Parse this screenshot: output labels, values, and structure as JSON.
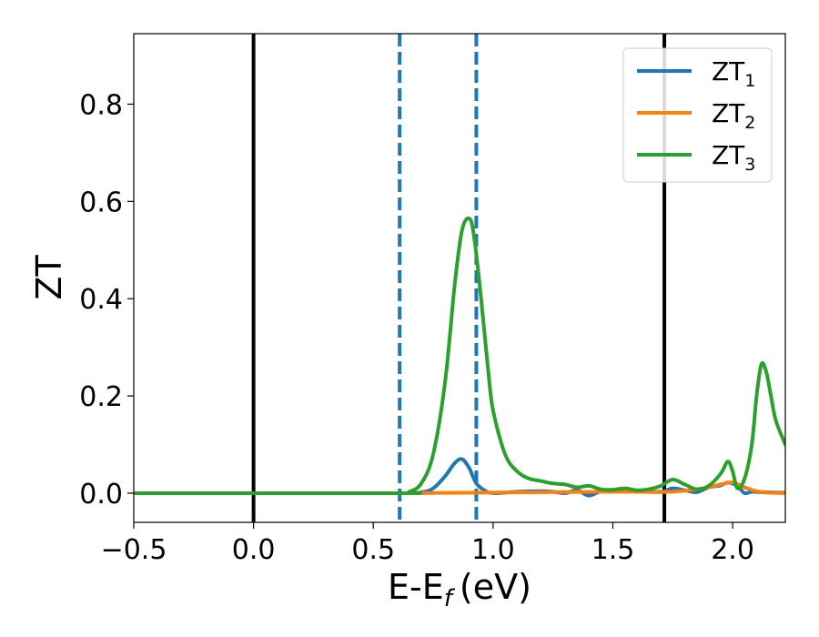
{
  "chart_data": {
    "type": "line",
    "title": "",
    "xlabel": "E-E",
    "xlabel_sub": "f",
    "xlabel_unit": "(eV)",
    "ylabel": "ZT",
    "xlim": [
      -0.5,
      2.22
    ],
    "ylim": [
      -0.06,
      0.945
    ],
    "xticks": [
      -0.5,
      0.0,
      0.5,
      1.0,
      1.5,
      2.0
    ],
    "xtick_labels": [
      "−0.5",
      "0.0",
      "0.5",
      "1.0",
      "1.5",
      "2.0"
    ],
    "yticks": [
      0.0,
      0.2,
      0.4,
      0.6,
      0.8
    ],
    "ytick_labels": [
      "0.0",
      "0.2",
      "0.4",
      "0.6",
      "0.8"
    ],
    "grid": false,
    "legend_position": "top-right",
    "vertical_lines": [
      {
        "x": 0.0,
        "style": "solid",
        "color": "#000000"
      },
      {
        "x": 1.715,
        "style": "solid",
        "color": "#000000"
      },
      {
        "x": 0.61,
        "style": "dashed",
        "color": "#1f77b4"
      },
      {
        "x": 0.93,
        "style": "dashed",
        "color": "#1f77b4"
      }
    ],
    "series": [
      {
        "name": "ZT",
        "name_sub": "1",
        "color": "#1f77b4",
        "x": [
          -0.5,
          0.6,
          0.7,
          0.75,
          0.8,
          0.84,
          0.87,
          0.9,
          0.93,
          0.97,
          1.0,
          1.05,
          1.1,
          1.2,
          1.25,
          1.3,
          1.35,
          1.4,
          1.45,
          1.5,
          1.6,
          1.7,
          1.75,
          1.8,
          1.85,
          1.9,
          1.95,
          1.98,
          2.02,
          2.05,
          2.08,
          2.12,
          2.22
        ],
        "values": [
          0.0,
          0.0,
          0.002,
          0.01,
          0.035,
          0.062,
          0.07,
          0.052,
          0.02,
          0.004,
          0.0,
          0.001,
          0.003,
          0.004,
          0.003,
          0.0,
          0.006,
          -0.005,
          0.004,
          0.005,
          0.004,
          0.003,
          0.01,
          0.006,
          0.002,
          0.012,
          0.016,
          0.022,
          0.015,
          0.0,
          0.003,
          0.002,
          0.001
        ]
      },
      {
        "name": "ZT",
        "name_sub": "2",
        "color": "#ff7f0e",
        "x": [
          -0.5,
          0.6,
          1.5,
          1.7,
          1.8,
          1.9,
          1.95,
          2.0,
          2.05,
          2.1,
          2.15,
          2.22
        ],
        "values": [
          0.0,
          0.0,
          0.003,
          0.002,
          0.005,
          0.012,
          0.018,
          0.022,
          0.012,
          0.004,
          0.001,
          0.0
        ]
      },
      {
        "name": "ZT",
        "name_sub": "3",
        "color": "#2ca02c",
        "x": [
          -0.5,
          0.6,
          0.65,
          0.7,
          0.75,
          0.8,
          0.84,
          0.87,
          0.9,
          0.92,
          0.95,
          0.98,
          1.0,
          1.05,
          1.1,
          1.15,
          1.2,
          1.25,
          1.3,
          1.35,
          1.4,
          1.45,
          1.5,
          1.55,
          1.6,
          1.65,
          1.7,
          1.75,
          1.8,
          1.85,
          1.9,
          1.95,
          1.98,
          2.0,
          2.02,
          2.05,
          2.08,
          2.1,
          2.12,
          2.14,
          2.16,
          2.18,
          2.22
        ],
        "values": [
          0.0,
          0.0,
          0.003,
          0.02,
          0.08,
          0.23,
          0.43,
          0.54,
          0.565,
          0.53,
          0.4,
          0.25,
          0.17,
          0.08,
          0.045,
          0.03,
          0.025,
          0.02,
          0.018,
          0.012,
          0.015,
          0.008,
          0.007,
          0.01,
          0.006,
          0.008,
          0.015,
          0.028,
          0.018,
          0.008,
          0.015,
          0.04,
          0.065,
          0.045,
          0.01,
          0.03,
          0.1,
          0.2,
          0.265,
          0.25,
          0.2,
          0.15,
          0.1
        ]
      }
    ]
  }
}
